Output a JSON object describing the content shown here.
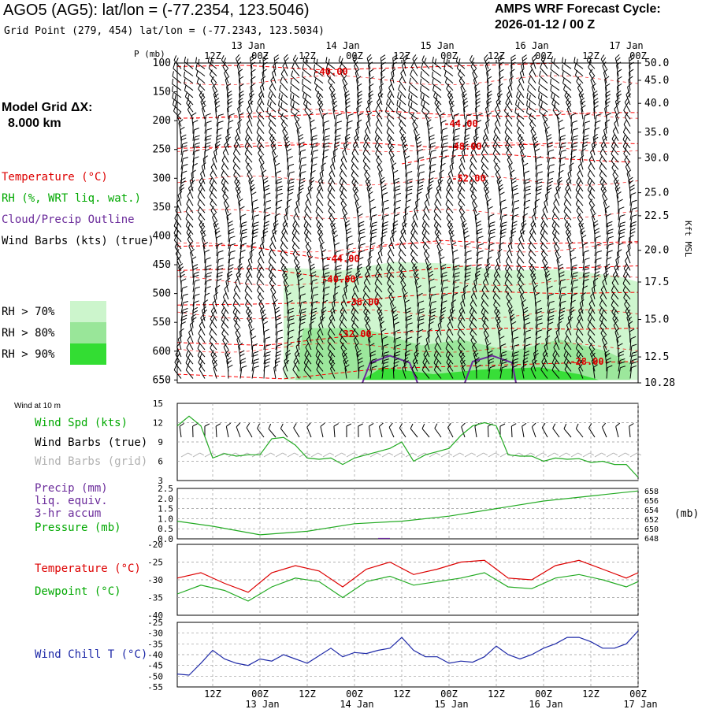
{
  "header": {
    "station_title": "AGO5 (AG5):  lat/lon = (-77.2354, 123.5046)",
    "grid_point": "Grid Point (279, 454) lat/lon = (-77.2343, 123.5034)",
    "cycle_line1": "AMPS WRF Forecast Cycle:",
    "cycle_line2": "2026-01-12 / 00  Z"
  },
  "model_grid": {
    "label": "Model Grid ΔX:",
    "value": "8.000 km"
  },
  "legend": {
    "temperature": "Temperature (°C)",
    "rh": "RH (%, WRT liq. wat.)",
    "cloud": "Cloud/Precip Outline",
    "wind_barbs": "Wind Barbs (kts) (true)",
    "rh70": "RH > 70%",
    "rh80": "RH > 80%",
    "rh90": "RH > 90%"
  },
  "colors": {
    "temperature": "#ff0000",
    "rh": "#00bb00",
    "cloud": "#6a2a9a",
    "rh70": "#ccf5cc",
    "rh80": "#99e699",
    "rh90": "#33dd33",
    "windchill": "#1f2aa8",
    "gridbarb": "#b0b0b0"
  },
  "time_axis": {
    "tick_labels": [
      "12Z",
      "00Z",
      "12Z",
      "00Z",
      "12Z",
      "00Z",
      "12Z",
      "00Z",
      "12Z",
      "00Z"
    ],
    "tick_hours": [
      12,
      24,
      36,
      48,
      60,
      72,
      84,
      96,
      108,
      120
    ],
    "date_labels": [
      "13 Jan",
      "14 Jan",
      "15 Jan",
      "16 Jan",
      "17 Jan"
    ],
    "date_hours": [
      24,
      48,
      72,
      96,
      120
    ],
    "range_hours": [
      3,
      120
    ]
  },
  "chart_data": [
    {
      "type": "line",
      "name": "upper-air cross section",
      "ylabel": "P (mb)",
      "y_ticks": [
        "100",
        "150",
        "200",
        "250",
        "300",
        "350",
        "400",
        "450",
        "500",
        "550",
        "600",
        "650"
      ],
      "y_values": [
        100,
        150,
        200,
        250,
        300,
        350,
        400,
        450,
        500,
        550,
        600,
        650
      ],
      "right_ticks": [
        "50.0",
        "45.0",
        "40.0",
        "35.0",
        "30.0",
        "25.0",
        "22.5",
        "20.0",
        "17.5",
        "15.0",
        "12.5",
        "10.28"
      ],
      "right_values": [
        100,
        130,
        170,
        220,
        265,
        325,
        365,
        425,
        480,
        545,
        610,
        655
      ],
      "right_label": "Kft MSL",
      "ylim": [
        100,
        655
      ],
      "contour_labels": [
        {
          "text": "-40.00",
          "hour": 42,
          "p": 115
        },
        {
          "text": "-44.00",
          "hour": 75,
          "p": 205
        },
        {
          "text": "-48.00",
          "hour": 76,
          "p": 245
        },
        {
          "text": "-52.00",
          "hour": 77,
          "p": 300
        },
        {
          "text": "-44.00",
          "hour": 45,
          "p": 440
        },
        {
          "text": "-40.00",
          "hour": 44,
          "p": 475
        },
        {
          "text": "-36.00",
          "hour": 50,
          "p": 515
        },
        {
          "text": "-32.00",
          "hour": 48,
          "p": 570
        },
        {
          "text": "-28.00",
          "hour": 107,
          "p": 618
        }
      ],
      "temperature_contours": [
        {
          "value": -40,
          "points": [
            [
              3,
              106
            ],
            [
              20,
              104
            ],
            [
              40,
              112
            ],
            [
              60,
              108
            ],
            [
              80,
              104
            ],
            [
              100,
              100
            ],
            [
              120,
              100
            ]
          ]
        },
        {
          "value": -44,
          "points": [
            [
              3,
              196
            ],
            [
              30,
              192
            ],
            [
              55,
              183
            ],
            [
              72,
              190
            ],
            [
              90,
              193
            ],
            [
              110,
              186
            ],
            [
              120,
              186
            ]
          ]
        },
        {
          "value": -48,
          "points": [
            [
              3,
              248
            ],
            [
              25,
              244
            ],
            [
              50,
              238
            ],
            [
              68,
              246
            ],
            [
              85,
              243
            ],
            [
              105,
              238
            ],
            [
              120,
              240
            ]
          ]
        },
        {
          "value": -52,
          "points": [
            [
              60,
              275
            ],
            [
              70,
              262
            ],
            [
              85,
              258
            ],
            [
              100,
              266
            ],
            [
              118,
              272
            ]
          ]
        },
        {
          "value": -44,
          "points": [
            [
              3,
              418
            ],
            [
              20,
              416
            ],
            [
              40,
              440
            ],
            [
              55,
              418
            ],
            [
              70,
              408
            ],
            [
              90,
              414
            ],
            [
              120,
              410
            ]
          ]
        },
        {
          "value": -40,
          "points": [
            [
              3,
              460
            ],
            [
              25,
              456
            ],
            [
              44,
              476
            ],
            [
              60,
              462
            ],
            [
              80,
              450
            ],
            [
              100,
              456
            ],
            [
              120,
              452
            ]
          ]
        },
        {
          "value": -36,
          "points": [
            [
              3,
              520
            ],
            [
              25,
              518
            ],
            [
              45,
              515
            ],
            [
              60,
              505
            ],
            [
              80,
              496
            ],
            [
              100,
              500
            ],
            [
              120,
              498
            ]
          ]
        },
        {
          "value": -32,
          "points": [
            [
              3,
              585
            ],
            [
              25,
              590
            ],
            [
              45,
              575
            ],
            [
              65,
              565
            ],
            [
              85,
              560
            ],
            [
              105,
              562
            ],
            [
              120,
              560
            ]
          ]
        },
        {
          "value": -28,
          "points": [
            [
              3,
              640
            ],
            [
              30,
              648
            ],
            [
              55,
              630
            ],
            [
              80,
              625
            ],
            [
              105,
              620
            ],
            [
              120,
              618
            ]
          ]
        }
      ],
      "rh_regions": [
        {
          "level": 70,
          "points": [
            [
              30,
              650
            ],
            [
              30,
              455
            ],
            [
              45,
              460
            ],
            [
              58,
              445
            ],
            [
              72,
              448
            ],
            [
              85,
              460
            ],
            [
              100,
              458
            ],
            [
              115,
              470
            ],
            [
              120,
              480
            ],
            [
              120,
              650
            ]
          ]
        },
        {
          "level": 80,
          "points": [
            [
              33,
              650
            ],
            [
              35,
              560
            ],
            [
              50,
              560
            ],
            [
              65,
              590
            ],
            [
              75,
              580
            ],
            [
              88,
              600
            ],
            [
              100,
              580
            ],
            [
              112,
              600
            ],
            [
              118,
              620
            ],
            [
              118,
              650
            ]
          ]
        },
        {
          "level": 90,
          "points": [
            [
              50,
              650
            ],
            [
              55,
              628
            ],
            [
              68,
              640
            ],
            [
              80,
              632
            ],
            [
              95,
              628
            ],
            [
              105,
              640
            ],
            [
              110,
              650
            ]
          ]
        }
      ],
      "cloud_outlines": [
        {
          "points": [
            [
              50,
              655
            ],
            [
              52,
              620
            ],
            [
              57,
              608
            ],
            [
              62,
              620
            ],
            [
              64,
              655
            ]
          ]
        },
        {
          "points": [
            [
              76,
              655
            ],
            [
              78,
              618
            ],
            [
              83,
              608
            ],
            [
              88,
              620
            ],
            [
              89,
              655
            ]
          ]
        }
      ]
    },
    {
      "type": "line",
      "name": "wind at 10 m",
      "title": "Wind at 10 m",
      "series": [
        {
          "name": "Wind Spd (kts)",
          "x": [
            3,
            6,
            9,
            12,
            15,
            18,
            21,
            24,
            27,
            30,
            33,
            36,
            39,
            42,
            45,
            48,
            51,
            54,
            57,
            60,
            63,
            66,
            69,
            72,
            75,
            78,
            81,
            84,
            87,
            90,
            93,
            96,
            99,
            102,
            105,
            108,
            111,
            114,
            117,
            120
          ],
          "values": [
            11.5,
            13,
            11.5,
            6.5,
            7.2,
            6.8,
            7,
            7,
            9.5,
            9.7,
            8.5,
            6.5,
            6.3,
            6.5,
            5.5,
            6.5,
            7,
            7.5,
            8,
            9,
            6,
            7,
            7.5,
            8,
            10,
            11.5,
            12,
            11.5,
            7,
            6.8,
            6.8,
            6,
            6.5,
            6.3,
            6.4,
            5.8,
            6,
            5.5,
            5.5,
            3.5
          ]
        }
      ],
      "ylim": [
        3,
        15
      ],
      "y_ticks": [
        "15",
        "12",
        "9",
        "6",
        "3"
      ],
      "legend": [
        "Wind Spd (kts)",
        "Wind Barbs (true)",
        "Wind Barbs (grid)"
      ]
    },
    {
      "type": "line",
      "name": "precip and pressure",
      "series": [
        {
          "name": "Precip (mm) liq. equiv. 3-hr accum",
          "x": [
            54,
            57
          ],
          "values": [
            0.02,
            0.02
          ]
        },
        {
          "name": "Pressure (mb)",
          "x": [
            3,
            12,
            24,
            36,
            48,
            60,
            72,
            84,
            96,
            108,
            120
          ],
          "values": [
            651.5,
            650.5,
            648.8,
            649.5,
            651,
            651.5,
            652.5,
            654,
            655.5,
            656.5,
            657.5
          ]
        }
      ],
      "left_ylim": [
        0,
        2.5
      ],
      "left_ticks": [
        "2.5",
        "2.0",
        "1.5",
        "1.0",
        "0.5",
        "0.0"
      ],
      "right_ylim": [
        648,
        658
      ],
      "right_ticks": [
        "658",
        "656",
        "654",
        "652",
        "650",
        "648"
      ],
      "right_unit": "(mb)",
      "legend": [
        "Precip (mm)",
        "liq. equiv.",
        "3-hr accum",
        "Pressure (mb)"
      ]
    },
    {
      "type": "line",
      "name": "temperature and dewpoint",
      "series": [
        {
          "name": "Temperature (°C)",
          "x": [
            3,
            9,
            15,
            21,
            27,
            33,
            39,
            45,
            51,
            57,
            63,
            69,
            75,
            81,
            87,
            93,
            99,
            105,
            111,
            117,
            120
          ],
          "values": [
            -29.5,
            -28,
            -31,
            -33.5,
            -28,
            -26,
            -27.5,
            -32,
            -27,
            -25,
            -28.5,
            -27,
            -25,
            -24.5,
            -29.5,
            -30,
            -26,
            -24.5,
            -27,
            -29.5,
            -28
          ]
        },
        {
          "name": "Dewpoint (°C)",
          "x": [
            3,
            9,
            15,
            21,
            27,
            33,
            39,
            45,
            51,
            57,
            63,
            69,
            75,
            81,
            87,
            93,
            99,
            105,
            111,
            117,
            120
          ],
          "values": [
            -34,
            -31.5,
            -33,
            -36,
            -32,
            -29.5,
            -30.5,
            -35,
            -30.5,
            -29,
            -31.5,
            -30.5,
            -29.5,
            -28,
            -32,
            -32.5,
            -29.5,
            -28.5,
            -30,
            -32,
            -30.5
          ]
        }
      ],
      "ylim": [
        -40,
        -20
      ],
      "y_ticks": [
        "-20",
        "-25",
        "-30",
        "-35",
        "-40"
      ]
    },
    {
      "type": "line",
      "name": "wind chill",
      "series": [
        {
          "name": "Wind Chill T (°C)",
          "x": [
            3,
            6,
            9,
            12,
            15,
            18,
            21,
            24,
            27,
            30,
            33,
            36,
            39,
            42,
            45,
            48,
            51,
            54,
            57,
            60,
            63,
            66,
            69,
            72,
            75,
            78,
            81,
            84,
            87,
            90,
            93,
            96,
            99,
            102,
            105,
            108,
            111,
            114,
            117,
            120
          ],
          "values": [
            -49,
            -49.5,
            -44,
            -38,
            -42,
            -44,
            -45,
            -42,
            -43,
            -40,
            -42,
            -44,
            -40.5,
            -37,
            -41,
            -39,
            -39.5,
            -38,
            -37,
            -32,
            -38,
            -41,
            -41,
            -44,
            -43,
            -43.5,
            -41,
            -36,
            -40,
            -42,
            -40,
            -37,
            -35,
            -32,
            -32,
            -34,
            -37,
            -37,
            -35,
            -29
          ]
        }
      ],
      "ylim": [
        -55,
        -25
      ],
      "y_ticks": [
        "-25",
        "-30",
        "-35",
        "-40",
        "-45",
        "-50",
        "-55"
      ],
      "legend": [
        "Wind Chill T (°C)"
      ]
    }
  ],
  "panel_labels": {
    "wind_title": "Wind at 10 m",
    "wind_spd": "Wind Spd (kts)",
    "wind_barbs_true": "Wind Barbs (true)",
    "wind_barbs_grid": "Wind Barbs (grid)",
    "precip1": "Precip (mm)",
    "precip2": "liq. equiv.",
    "precip3": "3-hr accum",
    "pressure": "Pressure (mb)",
    "pressure_unit": "(mb)",
    "temperature": "Temperature (°C)",
    "dewpoint": "Dewpoint (°C)",
    "windchill": "Wind Chill T (°C)",
    "p_axis": "P (mb)",
    "kft": "Kft MSL"
  }
}
